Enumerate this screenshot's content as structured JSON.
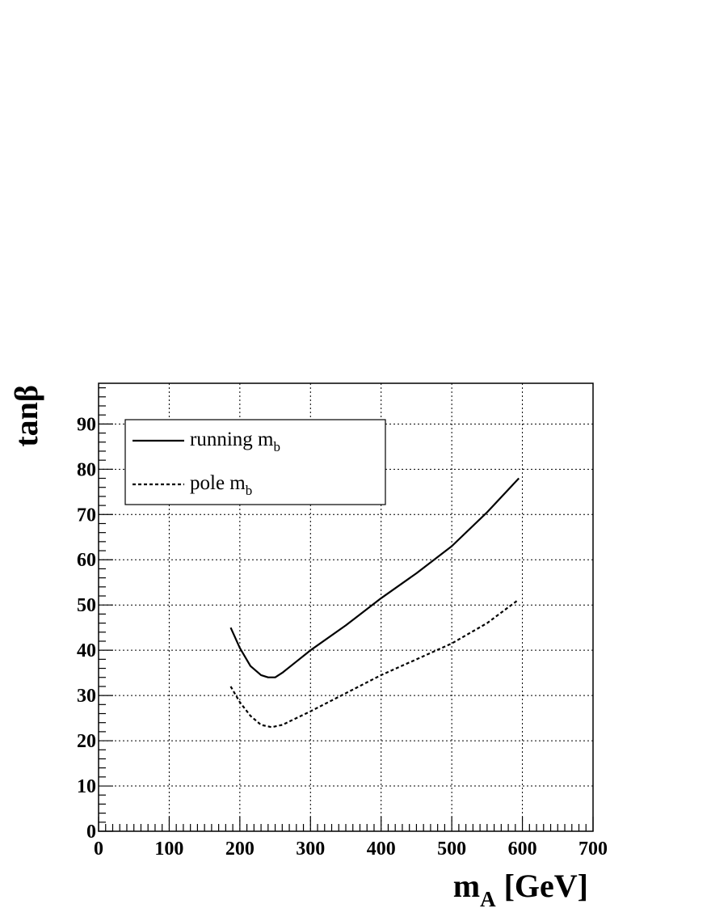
{
  "chart_data": {
    "type": "line",
    "xlabel": "m_A [GeV]",
    "xlabel_main": "m",
    "xlabel_sub": "A",
    "xlabel_rest": " [GeV]",
    "ylabel": "tanβ",
    "xlim": [
      0,
      700
    ],
    "ylim": [
      0,
      99
    ],
    "xticks": [
      0,
      100,
      200,
      300,
      400,
      500,
      600,
      700
    ],
    "yticks": [
      0,
      10,
      20,
      30,
      40,
      50,
      60,
      70,
      80,
      90
    ],
    "grid": true,
    "legend_position": "top-left",
    "series": [
      {
        "name": "running m_b",
        "label_main": "running m",
        "label_sub": "b",
        "style": "solid",
        "x": [
          187,
          200,
          215,
          230,
          240,
          250,
          260,
          280,
          300,
          350,
          400,
          450,
          500,
          550,
          595
        ],
        "y": [
          45,
          40.5,
          36.5,
          34.5,
          34,
          34,
          35,
          37.5,
          40,
          45.5,
          51.5,
          57,
          63,
          70.5,
          78
        ]
      },
      {
        "name": "pole m_b",
        "label_main": "pole m",
        "label_sub": "b",
        "style": "dashed",
        "x": [
          187,
          200,
          215,
          230,
          245,
          260,
          280,
          300,
          350,
          400,
          450,
          500,
          550,
          593
        ],
        "y": [
          32,
          28.5,
          25.5,
          23.5,
          23,
          23.5,
          25,
          26.5,
          30.5,
          34.5,
          38,
          41.5,
          46,
          51
        ]
      }
    ]
  }
}
